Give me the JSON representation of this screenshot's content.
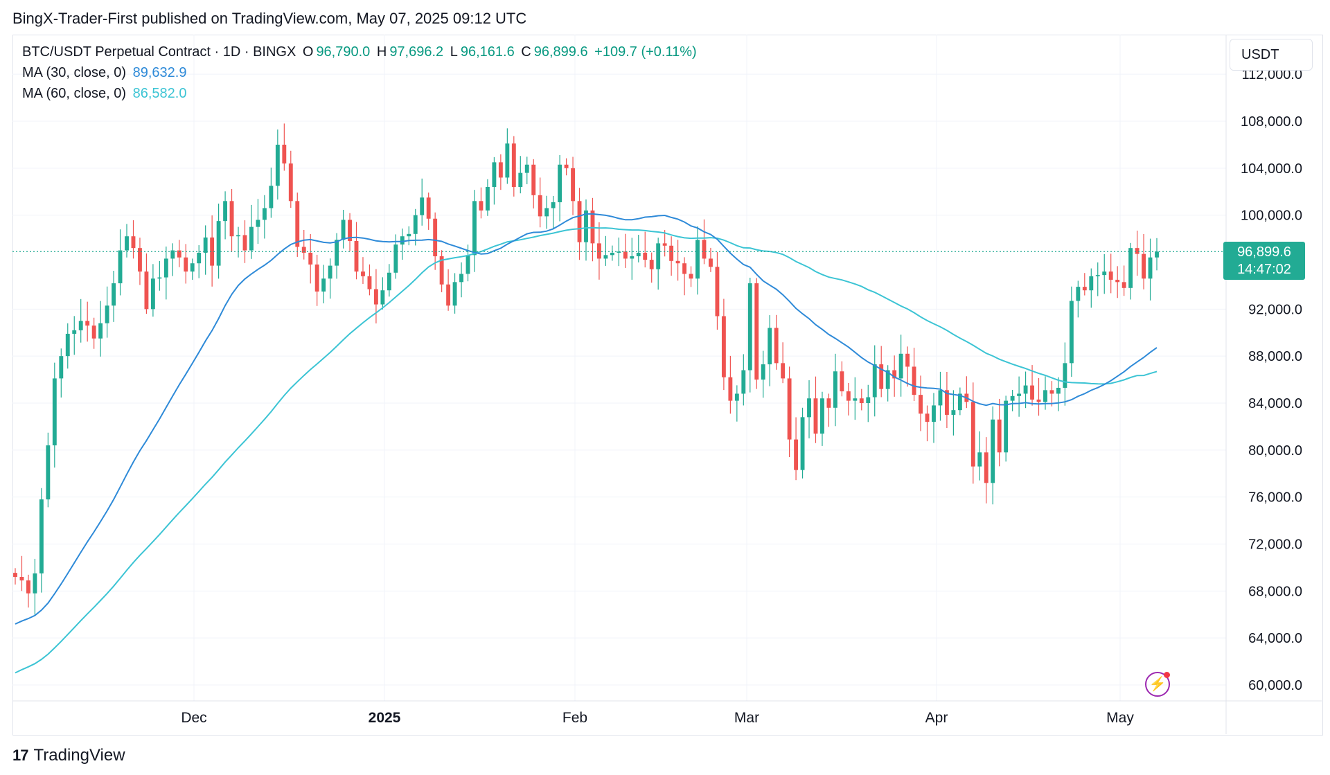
{
  "publisher_line": "BingX-Trader-First published on TradingView.com, May 07, 2025 09:12 UTC",
  "header": {
    "symbol": "BTC/USDT Perpetual Contract · 1D · BINGX",
    "o_label": "O",
    "o_value": "96,790.0",
    "h_label": "H",
    "h_value": "97,696.2",
    "l_label": "L",
    "l_value": "96,161.6",
    "c_label": "C",
    "c_value": "96,899.6",
    "change": "+109.7 (+0.11%)"
  },
  "indicators": [
    {
      "label": "MA (30, close, 0)",
      "value": "89,632.9",
      "color": "#2e8ad8"
    },
    {
      "label": "MA (60, close, 0)",
      "value": "86,582.0",
      "color": "#3cc4d4"
    }
  ],
  "price_axis_unit": "USDT",
  "last_price_badge": {
    "price": "96,899.6",
    "countdown": "14:47:02",
    "color": "#22ab94"
  },
  "brand": {
    "logo_text": "TradingView",
    "logo_mark": "17"
  },
  "colors": {
    "up": "#22ab94",
    "down": "#ef5350",
    "grid": "#f0f3fa"
  },
  "chart_data": {
    "type": "candlestick",
    "title": "BTC/USDT Perpetual Contract · 1D · BINGX",
    "y_tick_labels": [
      "112,000.0",
      "108,000.0",
      "104,000.0",
      "100,000.0",
      "92,000.0",
      "88,000.0",
      "84,000.0",
      "80,000.0",
      "76,000.0",
      "72,000.0",
      "68,000.0",
      "64,000.0",
      "60,000.0"
    ],
    "x_tick_labels": [
      "Dec",
      "2025",
      "Feb",
      "Mar",
      "Apr",
      "May"
    ],
    "ylim": [
      59000,
      113000
    ],
    "last_price": 96899.6,
    "ohlc_start_close": 69200,
    "daily_closes": [
      69200,
      68900,
      67800,
      69500,
      75800,
      80400,
      86100,
      88000,
      89900,
      90200,
      91000,
      90600,
      89500,
      90800,
      92300,
      94200,
      97000,
      98200,
      97200,
      95200,
      92000,
      94600,
      94700,
      96300,
      97000,
      96400,
      95200,
      95900,
      96800,
      98100,
      95700,
      99500,
      101200,
      98200,
      98300,
      97000,
      99000,
      99600,
      100600,
      102500,
      106000,
      104400,
      101200,
      97300,
      96800,
      95800,
      93500,
      94600,
      95700,
      97900,
      99600,
      97800,
      95200,
      94800,
      93700,
      92400,
      93600,
      95100,
      97500,
      98200,
      98400,
      100000,
      101500,
      99700,
      96500,
      94100,
      92300,
      94300,
      95000,
      96600,
      101200,
      100400,
      102400,
      104500,
      103200,
      106100,
      102400,
      103600,
      104300,
      101700,
      99900,
      100600,
      101100,
      104300,
      104000,
      101200,
      97700,
      100400,
      97600,
      96300,
      96600,
      96800,
      96900,
      96300,
      96500,
      96800,
      96200,
      95400,
      97600,
      97400,
      96100,
      95900,
      95000,
      94600,
      97900,
      96300,
      95600,
      91400,
      86200,
      84200,
      84800,
      86800,
      94200,
      86000,
      87300,
      90400,
      87400,
      86100,
      80900,
      78300,
      82800,
      84400,
      81400,
      84400,
      83600,
      86700,
      85000,
      84200,
      84400,
      84000,
      84500,
      87300,
      85200,
      86800,
      86100,
      88200,
      87100,
      84700,
      83100,
      82400,
      83800,
      85100,
      83000,
      83400,
      84800,
      84100,
      78600,
      79800,
      77200,
      82600,
      79800,
      84200,
      84600,
      84800,
      85500,
      84300,
      84100,
      85100,
      84800,
      85300,
      87400,
      92700,
      93900,
      93600,
      94800,
      94900,
      95200,
      94500,
      94300,
      93800,
      97200,
      96700,
      94600,
      96400,
      96899.6
    ],
    "ma_30_last": 89632.9,
    "ma_60_last": 86582.0
  }
}
